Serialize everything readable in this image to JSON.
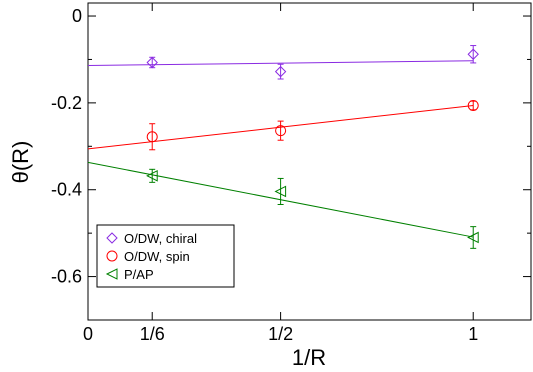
{
  "chart_data": {
    "type": "scatter",
    "xlabel": "1/R",
    "ylabel": "θ(R)",
    "xlim": [
      0,
      1.15
    ],
    "ylim": [
      -0.7,
      0.03
    ],
    "x_ticks": [
      {
        "value": 0,
        "label": "0"
      },
      {
        "value": 0.1667,
        "label": "1/6"
      },
      {
        "value": 0.5,
        "label": "1/2"
      },
      {
        "value": 1,
        "label": "1"
      }
    ],
    "y_ticks": [
      {
        "value": 0,
        "label": "0"
      },
      {
        "value": -0.2,
        "label": "-0.2"
      },
      {
        "value": -0.4,
        "label": "-0.4"
      },
      {
        "value": -0.6,
        "label": "-0.6"
      }
    ],
    "legend_position": "bottom-left",
    "series": [
      {
        "name": "O/DW, chiral",
        "color": "#8a2be2",
        "marker": "diamond",
        "x": [
          0.1667,
          0.5,
          1
        ],
        "y": [
          -0.107,
          -0.128,
          -0.088
        ],
        "err": [
          0.012,
          0.017,
          0.02
        ],
        "fit": {
          "intercept": -0.114,
          "slope": 0.011
        }
      },
      {
        "name": "O/DW, spin",
        "color": "#ff0000",
        "marker": "circle",
        "x": [
          0.1667,
          0.5,
          1
        ],
        "y": [
          -0.278,
          -0.264,
          -0.206
        ],
        "err": [
          0.03,
          0.022,
          0.01
        ],
        "fit": {
          "intercept": -0.306,
          "slope": 0.1
        }
      },
      {
        "name": "P/AP",
        "color": "#008000",
        "marker": "triangle-left",
        "x": [
          0.1667,
          0.5,
          1
        ],
        "y": [
          -0.368,
          -0.404,
          -0.51
        ],
        "err": [
          0.015,
          0.03,
          0.025
        ],
        "fit": {
          "intercept": -0.337,
          "slope": -0.172
        }
      }
    ]
  }
}
